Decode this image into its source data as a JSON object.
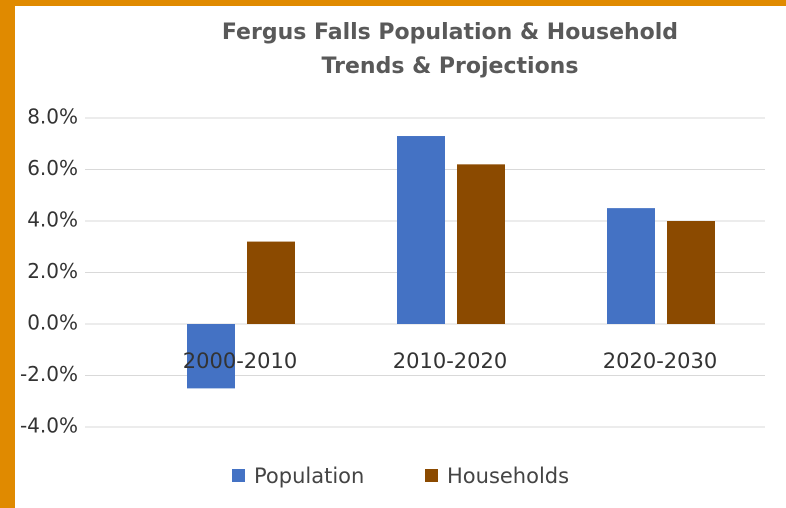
{
  "chart_data": {
    "type": "bar",
    "title": "Fergus Falls Population & Household Trends & Projections",
    "title_lines": [
      "Fergus Falls Population & Household",
      "Trends & Projections"
    ],
    "categories": [
      "2000-2010",
      "2010-2020",
      "2020-2030"
    ],
    "series": [
      {
        "name": "Population",
        "color": "#4472c4",
        "values": [
          -2.5,
          7.3,
          4.5
        ]
      },
      {
        "name": "Households",
        "color": "#8b4a00",
        "values": [
          3.2,
          6.2,
          4.0
        ]
      }
    ],
    "ylim": [
      -4,
      8
    ],
    "yticks": [
      {
        "value": -4,
        "label": "-4.0%"
      },
      {
        "value": -2,
        "label": "-2.0%"
      },
      {
        "value": 0,
        "label": "0.0%"
      },
      {
        "value": 2,
        "label": "2.0%"
      },
      {
        "value": 4,
        "label": "4.0%"
      },
      {
        "value": 6,
        "label": "6.0%"
      },
      {
        "value": 8,
        "label": "8.0%"
      }
    ],
    "grid": true,
    "legend": "bottom"
  }
}
